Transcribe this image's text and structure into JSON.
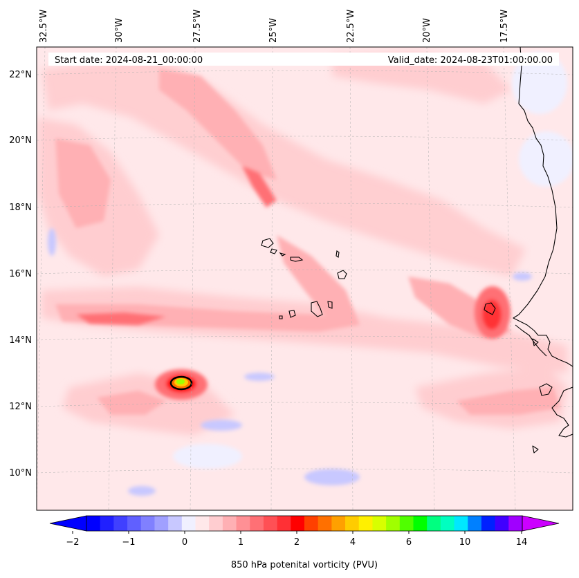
{
  "map": {
    "start_date": "Start date: 2024-08-21_00:00:00",
    "valid_date": "Valid_date: 2024-08-23T01:00:00.00",
    "longitude_labels": [
      "32.5°W",
      "30°W",
      "27.5°W",
      "25°W",
      "22.5°W",
      "20°W",
      "17.5°W"
    ],
    "latitude_labels": [
      "22°N",
      "20°N",
      "18°N",
      "16°N",
      "14°N",
      "12°N",
      "10°N"
    ],
    "extent": {
      "lon_min": -32.6,
      "lon_max": -15.1,
      "lat_min": 8.9,
      "lat_max": 22.8
    },
    "gridlines": true,
    "colors": {
      "background": "#ffe8ea",
      "coastline": "#000000",
      "grid": "#b0b0b0"
    }
  },
  "colorbar": {
    "label": "850 hPa potenital vorticity (PVU)",
    "tick_labels": [
      "−2",
      "−1",
      "0",
      "1",
      "2",
      "4",
      "6",
      "10",
      "14"
    ],
    "extend": "both",
    "colors": [
      "#0000ff",
      "#2020ff",
      "#4040ff",
      "#6060ff",
      "#8080ff",
      "#a0a0ff",
      "#c8c8ff",
      "#f0f0ff",
      "#ffe8ea",
      "#ffcdd0",
      "#ffb0b4",
      "#ff9095",
      "#ff7075",
      "#ff5055",
      "#ff3035",
      "#ff0000",
      "#ff4000",
      "#ff7000",
      "#ffa000",
      "#ffcc00",
      "#fff000",
      "#d8ff00",
      "#a0ff00",
      "#50ff00",
      "#00ff00",
      "#00ff80",
      "#00ffc0",
      "#00e8ff",
      "#0080ff",
      "#0020ff",
      "#4000ff",
      "#a000ff"
    ],
    "min_color": "#0000ff",
    "max_color": "#cc00ff"
  }
}
